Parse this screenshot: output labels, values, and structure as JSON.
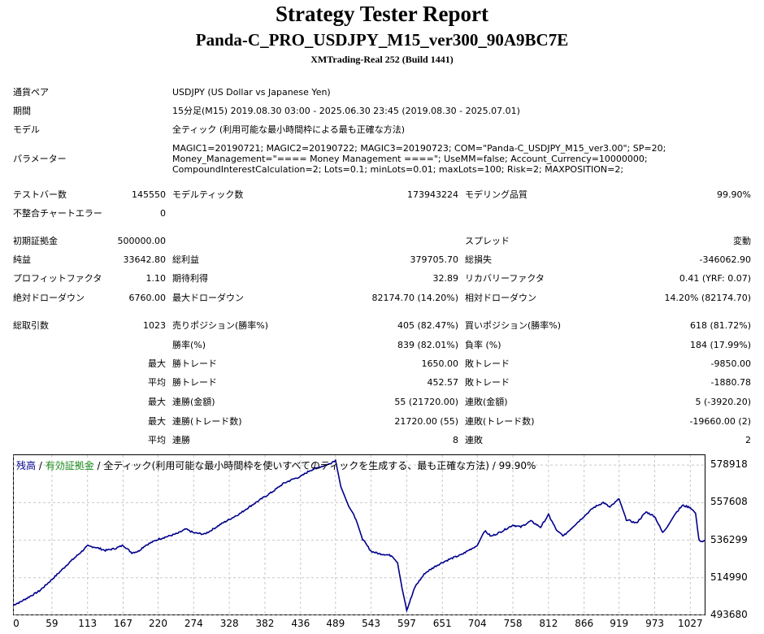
{
  "header": {
    "title": "Strategy Tester Report",
    "subtitle": "Panda-C_PRO_USDJPY_M15_ver300_90A9BC7E",
    "server": "XMTrading-Real 252 (Build 1441)"
  },
  "info": {
    "pair_label": "通貨ペア",
    "pair_value": "USDJPY (US Dollar vs Japanese Yen)",
    "period_label": "期間",
    "period_value": "15分足(M15) 2019.08.30 03:00 - 2025.06.30 23:45 (2019.08.30 - 2025.07.01)",
    "model_label": "モデル",
    "model_value": "全ティック (利用可能な最小時間枠による最も正確な方法)",
    "params_label": "パラメーター",
    "params_value": "MAGIC1=20190721; MAGIC2=20190722; MAGIC3=20190723; COM=\"Panda-C_USDJPY_M15_ver3.00\"; SP=20; Money_Management=\"==== Money Management ====\"; UseMM=false; Account_Currency=10000000; CompoundInterestCalculation=2; Lots=0.1; minLots=0.01; maxLots=100; Risk=2; MAXPOSITION=2;"
  },
  "stats": {
    "bars_label": "テストバー数",
    "bars_value": "145550",
    "ticks_label": "モデルティック数",
    "ticks_value": "173943224",
    "quality_label": "モデリング品質",
    "quality_value": "99.90%",
    "mismatch_label": "不整合チャートエラー",
    "mismatch_value": "0",
    "deposit_label": "初期証拠金",
    "deposit_value": "500000.00",
    "spread_label": "スプレッド",
    "spread_value": "変動",
    "net_label": "純益",
    "net_value": "33642.80",
    "gross_profit_label": "総利益",
    "gross_profit_value": "379705.70",
    "gross_loss_label": "総損失",
    "gross_loss_value": "-346062.90",
    "pf_label": "プロフィットファクタ",
    "pf_value": "1.10",
    "expected_label": "期待利得",
    "expected_value": "32.89",
    "recovery_label": "リカバリーファクタ",
    "recovery_value": "0.41 (YRF: 0.07)",
    "abs_dd_label": "絶対ドローダウン",
    "abs_dd_value": "6760.00",
    "max_dd_label": "最大ドローダウン",
    "max_dd_value": "82174.70 (14.20%)",
    "rel_dd_label": "相対ドローダウン",
    "rel_dd_value": "14.20% (82174.70)",
    "trades_label": "総取引数",
    "trades_value": "1023",
    "short_label": "売りポジション(勝率%)",
    "short_value": "405 (82.47%)",
    "long_label": "買いポジション(勝率%)",
    "long_value": "618 (81.72%)",
    "win_pct_label": "勝率(%)",
    "win_pct_value": "839 (82.01%)",
    "loss_pct_label": "負率 (%)",
    "loss_pct_value": "184 (17.99%)",
    "max_label": "最大",
    "avg_label": "平均",
    "win_trade_label": "勝トレード",
    "lose_trade_label": "敗トレード",
    "max_win_value": "1650.00",
    "max_loss_value": "-9850.00",
    "avg_win_value": "452.57",
    "avg_loss_value": "-1880.78",
    "cons_win_money_label": "連勝(金額)",
    "cons_win_money_value": "55 (21720.00)",
    "cons_loss_money_label": "連敗(金額)",
    "cons_loss_money_value": "5 (-3920.20)",
    "cons_win_trades_label": "連勝(トレード数)",
    "cons_win_trades_value": "21720.00 (55)",
    "cons_loss_trades_label": "連敗(トレード数)",
    "cons_loss_trades_value": "-19660.00 (2)",
    "avg_cons_win_label": "連勝",
    "avg_cons_win_value": "8",
    "avg_cons_loss_label": "連敗",
    "avg_cons_loss_value": "2"
  },
  "legend": {
    "balance": "残高",
    "sep1": " / ",
    "equity": "有効証拠金",
    "rest": " / 全ティック(利用可能な最小時間枠を使いすべてのティックを生成する、最も正確な方法) / 99.90%"
  },
  "colors": {
    "balance": "#00008b",
    "equity": "#1b8a1b",
    "grid": "#c8c8c8"
  },
  "chart_data": {
    "type": "line",
    "x_ticks": [
      0,
      59,
      113,
      167,
      220,
      274,
      328,
      382,
      436,
      489,
      543,
      597,
      651,
      704,
      758,
      812,
      866,
      919,
      973,
      1027
    ],
    "y_ticks": [
      578918,
      557608,
      536299,
      514990,
      493680
    ],
    "xlim": [
      0,
      1050
    ],
    "ylim": [
      493680,
      585000
    ],
    "grid": true,
    "series": [
      {
        "name": "残高",
        "x": [
          0,
          10,
          20,
          40,
          59,
          70,
          85,
          100,
          113,
          125,
          140,
          155,
          167,
          180,
          190,
          200,
          220,
          235,
          250,
          262,
          274,
          290,
          300,
          315,
          328,
          345,
          355,
          370,
          382,
          395,
          410,
          425,
          436,
          450,
          465,
          478,
          489,
          497,
          507,
          520,
          530,
          543,
          555,
          565,
          575,
          583,
          590,
          597,
          610,
          625,
          640,
          651,
          665,
          680,
          690,
          704,
          715,
          725,
          740,
          758,
          770,
          785,
          800,
          812,
          825,
          835,
          850,
          866,
          880,
          895,
          905,
          919,
          930,
          945,
          960,
          973,
          985,
          995,
          1005,
          1015,
          1027,
          1035,
          1040,
          1045,
          1050
        ],
        "y": [
          499500,
          501000,
          503200,
          507500,
          514000,
          518000,
          523500,
          528500,
          533000,
          532300,
          530500,
          531600,
          533400,
          529200,
          530000,
          533200,
          536800,
          538500,
          540200,
          542600,
          540500,
          539700,
          541800,
          545400,
          548100,
          551600,
          554400,
          558100,
          561000,
          564200,
          568500,
          571000,
          572400,
          575800,
          577800,
          579300,
          581700,
          566800,
          557400,
          548100,
          536900,
          530000,
          528600,
          528200,
          527400,
          523600,
          508900,
          496600,
          510200,
          517700,
          521400,
          523700,
          526000,
          528100,
          530400,
          533300,
          541600,
          538500,
          541100,
          544900,
          543800,
          547200,
          543700,
          550700,
          541400,
          538800,
          544300,
          549900,
          554700,
          557700,
          555000,
          559700,
          548000,
          546000,
          552300,
          549800,
          540600,
          545600,
          551800,
          556000,
          554900,
          551600,
          536500,
          535500,
          536000
        ]
      }
    ]
  }
}
